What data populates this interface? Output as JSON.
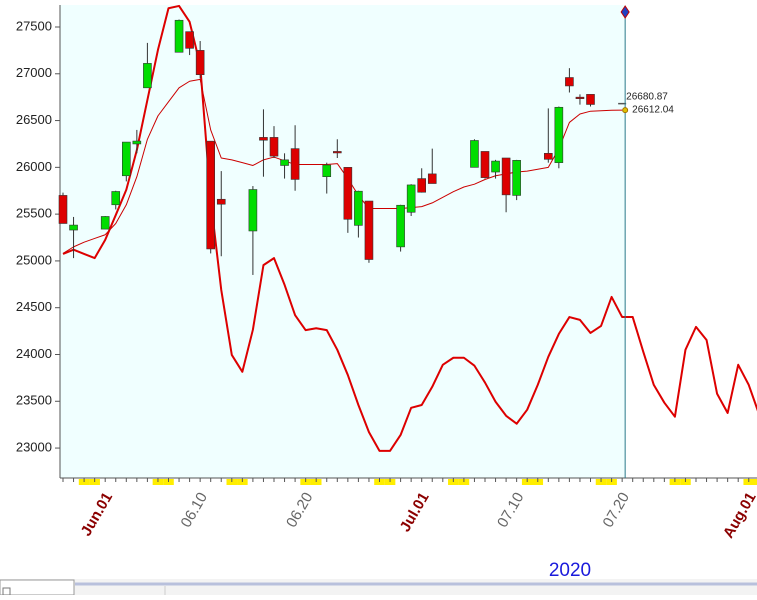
{
  "chart_data": {
    "type": "candlestick",
    "year_label": "2020",
    "categories": [
      null,
      null,
      null,
      null,
      "Jun.01",
      null,
      null,
      null,
      null,
      null,
      null,
      null,
      null,
      "06.10",
      null,
      null,
      null,
      null,
      null,
      null,
      null,
      null,
      null,
      "06.20",
      null,
      null,
      null,
      null,
      null,
      null,
      null,
      null,
      null,
      null,
      "Jul.01",
      null,
      null,
      null,
      null,
      null,
      null,
      null,
      null,
      "07.10",
      null,
      null,
      null,
      null,
      null,
      null,
      null,
      null,
      null,
      "07.20",
      null,
      null,
      null,
      null,
      null,
      null,
      null,
      null,
      null,
      null,
      null,
      "Aug.01",
      null
    ],
    "open": [
      25700,
      25330,
      null,
      null,
      25340,
      25600,
      25910,
      26250,
      26850,
      null,
      null,
      27230,
      27450,
      27250,
      26280,
      25659,
      null,
      null,
      25320,
      26320,
      26320,
      26020,
      26200,
      null,
      null,
      25900,
      26170,
      26000,
      25380,
      25640,
      null,
      null,
      25150,
      25520,
      25880,
      25930,
      null,
      null,
      null,
      26000,
      26170,
      25950,
      26100,
      25700,
      null,
      null,
      26150,
      26050,
      26960,
      26750,
      26780,
      null,
      null,
      null,
      null,
      null,
      null,
      null,
      null,
      null,
      null,
      null,
      null,
      null,
      null,
      null,
      null
    ],
    "high": [
      25730,
      25470,
      null,
      null,
      25480,
      25750,
      26270,
      26400,
      27330,
      null,
      null,
      27580,
      27450,
      27350,
      26280,
      25960,
      null,
      null,
      25800,
      26620,
      26440,
      26150,
      26450,
      null,
      null,
      26050,
      26300,
      26000,
      25750,
      25640,
      null,
      null,
      25600,
      25820,
      25990,
      26200,
      null,
      null,
      null,
      26300,
      26170,
      26080,
      26100,
      26080,
      null,
      null,
      26630,
      26650,
      27060,
      26780,
      26780,
      null,
      null,
      null,
      null,
      null,
      null,
      null,
      null,
      null,
      null,
      null,
      null,
      null,
      null,
      null,
      null
    ],
    "low": [
      25400,
      25030,
      null,
      null,
      25340,
      25550,
      25850,
      26150,
      26850,
      null,
      null,
      27230,
      27200,
      26950,
      25080,
      25050,
      null,
      null,
      24850,
      25900,
      26100,
      25880,
      25750,
      null,
      null,
      25720,
      26100,
      25300,
      25250,
      24980,
      null,
      null,
      25100,
      25480,
      25730,
      25830,
      null,
      null,
      null,
      26000,
      25880,
      25880,
      25520,
      25650,
      null,
      null,
      26050,
      25990,
      26800,
      26670,
      26650,
      null,
      null,
      null,
      null,
      null,
      null,
      null,
      null,
      null,
      null,
      null,
      null,
      null,
      null,
      null,
      null
    ],
    "close": [
      25400,
      25383,
      null,
      null,
      25475,
      25742,
      26270,
      26281,
      27111,
      null,
      null,
      27572,
      27272,
      26990,
      25128,
      25606,
      null,
      null,
      25763,
      26290,
      26120,
      26080,
      25871,
      null,
      null,
      26025,
      26156,
      25445,
      25745,
      25015,
      null,
      null,
      25595,
      25812,
      25734,
      25827,
      null,
      null,
      null,
      26287,
      25890,
      26067,
      25706,
      26075,
      null,
      null,
      26086,
      26642,
      26870,
      26734,
      26672,
      null,
      null,
      26680.87,
      null,
      null,
      null,
      null,
      null,
      null,
      null,
      null,
      null,
      null,
      null,
      null,
      null
    ],
    "moving_average": [
      25080,
      25150,
      25200,
      25240,
      25280,
      25400,
      25600,
      25900,
      26300,
      26550,
      26700,
      26850,
      26920,
      26940,
      26400,
      26100,
      26080,
      26050,
      26020,
      26080,
      26110,
      26070,
      26030,
      26030,
      26030,
      26030,
      26040,
      25880,
      25700,
      25560,
      25560,
      25560,
      25560,
      25570,
      25580,
      25620,
      25680,
      25740,
      25790,
      25820,
      25870,
      25910,
      25930,
      25950,
      25960,
      25980,
      26000,
      26200,
      26480,
      26570,
      26600,
      26605,
      26610,
      26612.04,
      null,
      null,
      null,
      null,
      null,
      null,
      null,
      null,
      null,
      null,
      null,
      null,
      null
    ],
    "cycle_line": [
      25075,
      25120,
      25075,
      25030,
      25225,
      25490,
      25760,
      26185,
      26720,
      27255,
      27700,
      27725,
      27555,
      27095,
      25650,
      24690,
      23995,
      23815,
      24265,
      24955,
      25030,
      24745,
      24420,
      24260,
      24280,
      24260,
      24050,
      23780,
      23460,
      23170,
      22970,
      22970,
      23140,
      23430,
      23460,
      23655,
      23890,
      23965,
      23965,
      23880,
      23700,
      23495,
      23345,
      23260,
      23410,
      23675,
      23975,
      24220,
      24400,
      24370,
      24230,
      24305,
      24615,
      24400,
      24400,
      24030,
      23675,
      23485,
      23335,
      24050,
      24295,
      24155,
      23580,
      23375,
      23890,
      23675,
      23355
    ],
    "up_color": "#00dd00",
    "down_color": "#dd0000",
    "ma_color": "#cc0000",
    "cycle_color": "#dd0000",
    "ylim": [
      22680,
      27735
    ],
    "yticks": [
      23000,
      23500,
      24000,
      24500,
      25000,
      25500,
      26000,
      26500,
      27000,
      27500
    ]
  }
}
